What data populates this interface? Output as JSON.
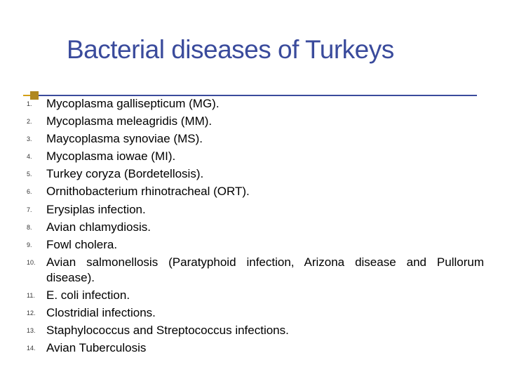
{
  "slide": {
    "title": "Bacterial diseases of Turkeys",
    "title_color": "#3a4b9c",
    "title_fontsize": 37,
    "accent_color": "#b08820",
    "underline_color": "#3a4b9c",
    "background_color": "#ffffff",
    "list_number_fontsize": 9,
    "list_text_fontsize": 17,
    "list_text_color": "#000000",
    "items": [
      {
        "number": "1.",
        "text": "Mycoplasma gallisepticum (MG)."
      },
      {
        "number": "2.",
        "text": "Mycoplasma meleagridis (MM)."
      },
      {
        "number": "3.",
        "text": "Maycoplasma synoviae (MS)."
      },
      {
        "number": "4.",
        "text": "Mycoplasma iowae (MI)."
      },
      {
        "number": "5.",
        "text": "Turkey coryza (Bordetellosis)."
      },
      {
        "number": "6.",
        "text": "Ornithobacterium rhinotracheal (ORT)."
      },
      {
        "number": "7.",
        "text": "Erysiplas infection."
      },
      {
        "number": "8.",
        "text": "Avian chlamydiosis."
      },
      {
        "number": "9.",
        "text": "Fowl cholera."
      },
      {
        "number": "10.",
        "text": "Avian salmonellosis (Paratyphoid infection, Arizona disease and Pullorum disease)."
      },
      {
        "number": "11.",
        "text": "E. coli infection."
      },
      {
        "number": "12.",
        "text": "Clostridial infections."
      },
      {
        "number": "13.",
        "text": "Staphylococcus and Streptococcus infections."
      },
      {
        "number": "14.",
        "text": "Avian Tuberculosis"
      }
    ]
  }
}
